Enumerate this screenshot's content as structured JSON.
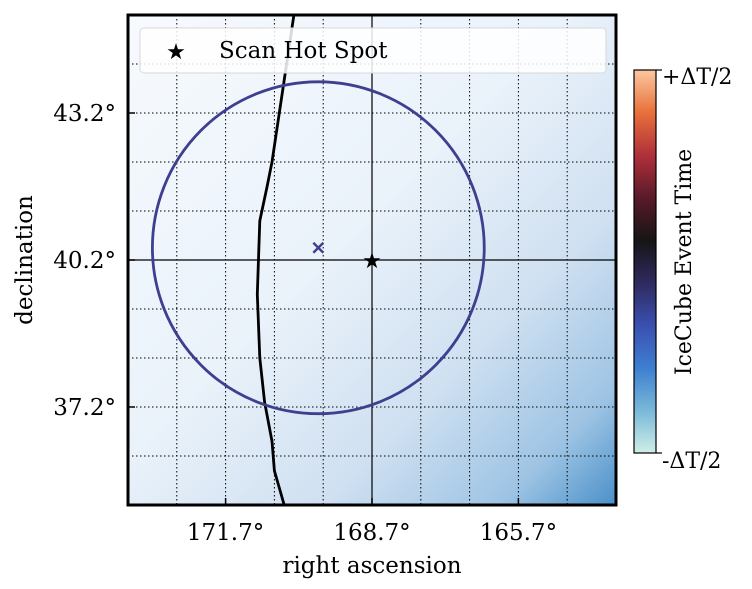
{
  "chart_data": {
    "type": "scatter",
    "xlabel": "right ascension",
    "ylabel": "declination",
    "xlim": [
      173.7,
      163.7
    ],
    "ylim": [
      35.2,
      45.2
    ],
    "x_ticks": [
      171.7,
      168.7,
      165.7
    ],
    "x_tick_labels": [
      "171.7°",
      "168.7°",
      "165.7°"
    ],
    "y_ticks": [
      43.2,
      40.2,
      37.2
    ],
    "y_tick_labels": [
      "43.2°",
      "40.2°",
      "37.2°"
    ],
    "grid": true,
    "hot_spot": {
      "ra": 168.7,
      "dec": 40.2
    },
    "legend": {
      "entries": [
        "Scan Hot Spot"
      ],
      "placement": "top"
    },
    "event": {
      "ra": 169.8,
      "dec": 40.45,
      "marker": "x",
      "color": "#3f3f8f"
    },
    "error_circle": {
      "ra": 169.8,
      "dec": 40.45,
      "radius_deg": 3.4,
      "color": "#3f3f8f"
    },
    "contour_line": [
      {
        "ra": 170.3,
        "dec": 45.2
      },
      {
        "ra": 170.45,
        "dec": 44.2
      },
      {
        "ra": 170.6,
        "dec": 43.2
      },
      {
        "ra": 170.75,
        "dec": 42.2
      },
      {
        "ra": 170.85,
        "dec": 41.7
      },
      {
        "ra": 171.0,
        "dec": 41.0
      },
      {
        "ra": 171.05,
        "dec": 39.5
      },
      {
        "ra": 171.0,
        "dec": 38.2
      },
      {
        "ra": 170.9,
        "dec": 37.3
      },
      {
        "ra": 170.75,
        "dec": 36.5
      },
      {
        "ra": 170.7,
        "dec": 35.9
      },
      {
        "ra": 170.5,
        "dec": 35.2
      }
    ],
    "colorbar": {
      "label": "IceCube Event Time",
      "top_label": "+ΔT/2",
      "bottom_label": "-ΔT/2",
      "colors_bottom_to_top": [
        "#cfeee8",
        "#79b8d8",
        "#3d7fd0",
        "#3b4fb0",
        "#2e2a5e",
        "#151515",
        "#5a1a2a",
        "#b0303a",
        "#e8703a",
        "#fbc8a0"
      ]
    },
    "background_gradient": {
      "colors": [
        "#f5f9fd",
        "#e6eff8",
        "#c9dcee",
        "#9cc3e3",
        "#4f93c9"
      ]
    }
  }
}
